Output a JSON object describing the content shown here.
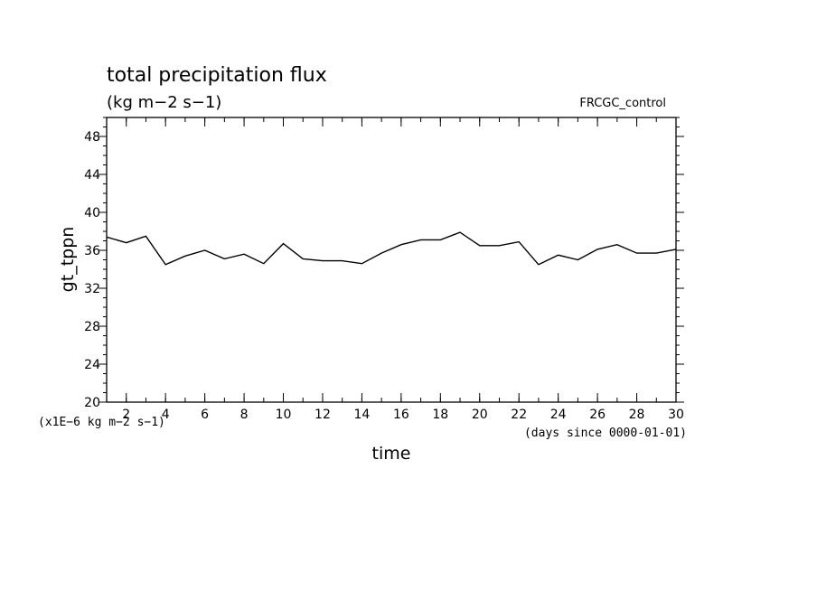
{
  "chart_data": {
    "type": "line",
    "title": "total precipitation flux",
    "subtitle": "(kg m−2 s−1)",
    "experiment": "FRCGC_control",
    "xlabel": "time",
    "ylabel": "gt_tppn",
    "x_unit_note": "(days since 0000-01-01)",
    "y_unit_note": "(x1E−6 kg m−2 s−1)",
    "xlim": [
      1,
      30
    ],
    "ylim": [
      20,
      50
    ],
    "x_major_ticks": [
      2,
      4,
      6,
      8,
      10,
      12,
      14,
      16,
      18,
      20,
      22,
      24,
      26,
      28,
      30
    ],
    "x_tick_labels": [
      "2",
      "4",
      "6",
      "8",
      "10",
      "12",
      "14",
      "16",
      "18",
      "20",
      "22",
      "24",
      "26",
      "28",
      "30"
    ],
    "y_major_ticks": [
      20,
      24,
      28,
      32,
      36,
      40,
      44,
      48
    ],
    "y_tick_labels": [
      "20",
      "24",
      "28",
      "32",
      "36",
      "40",
      "44",
      "48"
    ],
    "grid": false,
    "series": [
      {
        "color": "#000000",
        "x": [
          1,
          2,
          3,
          4,
          5,
          6,
          7,
          8,
          9,
          10,
          11,
          12,
          13,
          14,
          15,
          16,
          17,
          18,
          19,
          20,
          21,
          22,
          23,
          24,
          25,
          26,
          27,
          28,
          29,
          30
        ],
        "y": [
          37.4,
          36.8,
          37.5,
          34.5,
          35.4,
          36.0,
          35.1,
          35.6,
          34.6,
          36.7,
          35.1,
          34.9,
          34.9,
          34.6,
          35.7,
          36.6,
          37.1,
          37.1,
          37.9,
          36.5,
          36.5,
          36.9,
          34.5,
          35.5,
          35.0,
          36.1,
          36.6,
          35.7,
          35.7,
          36.1
        ]
      }
    ]
  }
}
